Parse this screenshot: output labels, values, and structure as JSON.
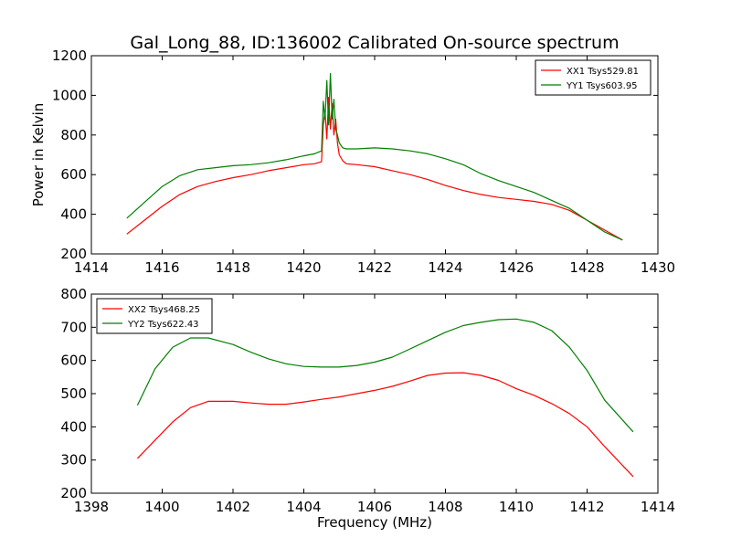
{
  "figure": {
    "title": "Gal_Long_88, ID:136002 Calibrated On-source spectrum"
  },
  "chart_data": [
    {
      "type": "line",
      "title": "Gal_Long_88, ID:136002 Calibrated On-source spectrum",
      "xlabel": "",
      "ylabel": "Power in Kelvin",
      "xlim": [
        1414,
        1430
      ],
      "ylim": [
        200,
        1200
      ],
      "xticks": [
        1414,
        1416,
        1418,
        1420,
        1422,
        1424,
        1426,
        1428,
        1430
      ],
      "yticks": [
        200,
        400,
        600,
        800,
        1000,
        1200
      ],
      "grid": false,
      "legend_position": "top-right",
      "series": [
        {
          "name": "XX1 Tsys529.81",
          "color": "#ff0000",
          "x": [
            1415,
            1415.5,
            1416,
            1416.5,
            1417,
            1417.5,
            1418,
            1418.5,
            1419,
            1419.5,
            1420,
            1420.3,
            1420.5,
            1420.55,
            1420.6,
            1420.65,
            1420.7,
            1420.75,
            1420.8,
            1420.85,
            1420.9,
            1420.95,
            1421,
            1421.1,
            1421.2,
            1421.5,
            1422,
            1422.5,
            1423,
            1423.5,
            1424,
            1424.5,
            1425,
            1425.5,
            1426,
            1426.5,
            1427,
            1427.5,
            1428,
            1428.5,
            1429
          ],
          "values": [
            300,
            370,
            440,
            500,
            540,
            565,
            585,
            600,
            620,
            635,
            650,
            655,
            665,
            850,
            920,
            780,
            990,
            830,
            960,
            800,
            880,
            760,
            700,
            670,
            655,
            650,
            640,
            620,
            600,
            575,
            545,
            520,
            500,
            485,
            475,
            465,
            450,
            420,
            370,
            320,
            270
          ]
        },
        {
          "name": "YY1 Tsys603.95",
          "color": "#008000",
          "x": [
            1415,
            1415.5,
            1416,
            1416.5,
            1417,
            1417.5,
            1418,
            1418.5,
            1419,
            1419.5,
            1420,
            1420.3,
            1420.5,
            1420.55,
            1420.6,
            1420.65,
            1420.7,
            1420.75,
            1420.8,
            1420.85,
            1420.9,
            1420.95,
            1421,
            1421.1,
            1421.2,
            1421.5,
            1422,
            1422.5,
            1423,
            1423.5,
            1424,
            1424.5,
            1425,
            1425.5,
            1426,
            1426.5,
            1427,
            1427.5,
            1428,
            1428.5,
            1429
          ],
          "values": [
            380,
            460,
            540,
            595,
            625,
            635,
            645,
            650,
            660,
            675,
            695,
            705,
            720,
            970,
            880,
            1075,
            850,
            1110,
            880,
            980,
            830,
            800,
            760,
            735,
            730,
            730,
            735,
            730,
            720,
            705,
            680,
            650,
            605,
            570,
            540,
            510,
            470,
            430,
            370,
            310,
            270
          ]
        }
      ]
    },
    {
      "type": "line",
      "title": "",
      "xlabel": "Frequency (MHz)",
      "ylabel": "",
      "xlim": [
        1398,
        1414
      ],
      "ylim": [
        200,
        800
      ],
      "xticks": [
        1398,
        1400,
        1402,
        1404,
        1406,
        1408,
        1410,
        1412,
        1414
      ],
      "yticks": [
        200,
        300,
        400,
        500,
        600,
        700,
        800
      ],
      "grid": false,
      "legend_position": "top-left",
      "series": [
        {
          "name": "XX2 Tsys468.25",
          "color": "#ff0000",
          "x": [
            1399.3,
            1399.8,
            1400.3,
            1400.8,
            1401.3,
            1402,
            1402.5,
            1403,
            1403.5,
            1404,
            1404.5,
            1405,
            1405.5,
            1406,
            1406.5,
            1407,
            1407.5,
            1408,
            1408.5,
            1409,
            1409.5,
            1410,
            1410.5,
            1411,
            1411.5,
            1412,
            1412.5,
            1413.3
          ],
          "values": [
            305,
            360,
            415,
            458,
            477,
            477,
            472,
            468,
            468,
            475,
            483,
            490,
            500,
            510,
            522,
            538,
            555,
            562,
            563,
            555,
            540,
            515,
            495,
            470,
            440,
            400,
            340,
            250
          ]
        },
        {
          "name": "YY2 Tsys622.43",
          "color": "#008000",
          "x": [
            1399.3,
            1399.8,
            1400.3,
            1400.8,
            1401.3,
            1402,
            1402.5,
            1403,
            1403.5,
            1404,
            1404.5,
            1405,
            1405.5,
            1406,
            1406.5,
            1407,
            1407.5,
            1408,
            1408.5,
            1409,
            1409.5,
            1410,
            1410.5,
            1411,
            1411.5,
            1412,
            1412.5,
            1413.3
          ],
          "values": [
            465,
            575,
            640,
            668,
            668,
            648,
            625,
            605,
            590,
            582,
            580,
            580,
            585,
            595,
            610,
            635,
            660,
            685,
            705,
            715,
            723,
            725,
            715,
            690,
            640,
            570,
            480,
            385
          ]
        }
      ]
    }
  ]
}
